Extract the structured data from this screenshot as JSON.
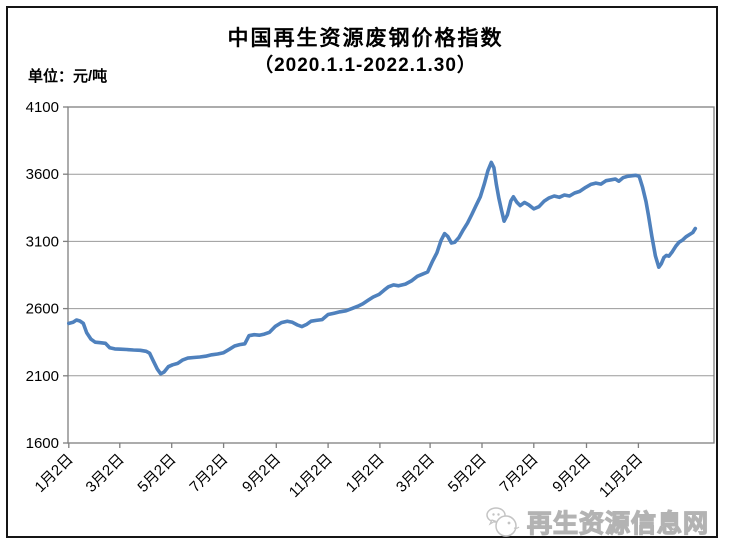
{
  "page": {
    "watermark_text": "再生资源信息网"
  },
  "chart_data": {
    "type": "line",
    "title": "中国再生资源废钢价格指数",
    "subtitle": "（2020.1.1-2022.1.30）",
    "unit_label": "单位：元/吨",
    "ylabel": "元/吨",
    "ylim": [
      1600,
      4100
    ],
    "y_step": 500,
    "yticks": [
      1600,
      2100,
      2600,
      3100,
      3600,
      4100
    ],
    "grid": true,
    "legend": "none",
    "line_color": "#4F81BD",
    "grid_color": "#9a9a9a",
    "axis_color": "#7f7f7f",
    "x_range": [
      "2020-01-01",
      "2022-01-30"
    ],
    "xticks": [
      {
        "label": "1月2日",
        "date": "2020-01-02"
      },
      {
        "label": "3月2日",
        "date": "2020-03-02"
      },
      {
        "label": "5月2日",
        "date": "2020-05-02"
      },
      {
        "label": "7月2日",
        "date": "2020-07-02"
      },
      {
        "label": "9月2日",
        "date": "2020-09-02"
      },
      {
        "label": "11月2日",
        "date": "2020-11-02"
      },
      {
        "label": "1月2日",
        "date": "2021-01-02"
      },
      {
        "label": "3月2日",
        "date": "2021-03-02"
      },
      {
        "label": "5月2日",
        "date": "2021-05-02"
      },
      {
        "label": "7月2日",
        "date": "2021-07-02"
      },
      {
        "label": "9月2日",
        "date": "2021-09-02"
      },
      {
        "label": "11月2日",
        "date": "2021-11-02"
      }
    ],
    "series": [
      {
        "points": [
          [
            "2020-01-02",
            2490
          ],
          [
            "2020-01-07",
            2498
          ],
          [
            "2020-01-11",
            2515
          ],
          [
            "2020-01-15",
            2508
          ],
          [
            "2020-01-19",
            2490
          ],
          [
            "2020-01-23",
            2420
          ],
          [
            "2020-01-28",
            2372
          ],
          [
            "2020-02-02",
            2350
          ],
          [
            "2020-02-08",
            2346
          ],
          [
            "2020-02-14",
            2342
          ],
          [
            "2020-02-19",
            2308
          ],
          [
            "2020-02-25",
            2300
          ],
          [
            "2020-03-03",
            2298
          ],
          [
            "2020-03-10",
            2296
          ],
          [
            "2020-03-18",
            2292
          ],
          [
            "2020-03-26",
            2290
          ],
          [
            "2020-04-02",
            2282
          ],
          [
            "2020-04-06",
            2268
          ],
          [
            "2020-04-10",
            2215
          ],
          [
            "2020-04-15",
            2150
          ],
          [
            "2020-04-19",
            2115
          ],
          [
            "2020-04-23",
            2128
          ],
          [
            "2020-04-28",
            2168
          ],
          [
            "2020-05-03",
            2182
          ],
          [
            "2020-05-09",
            2192
          ],
          [
            "2020-05-15",
            2218
          ],
          [
            "2020-05-21",
            2232
          ],
          [
            "2020-05-28",
            2236
          ],
          [
            "2020-06-04",
            2240
          ],
          [
            "2020-06-11",
            2246
          ],
          [
            "2020-06-18",
            2256
          ],
          [
            "2020-06-25",
            2262
          ],
          [
            "2020-07-02",
            2272
          ],
          [
            "2020-07-09",
            2298
          ],
          [
            "2020-07-15",
            2322
          ],
          [
            "2020-07-21",
            2332
          ],
          [
            "2020-07-27",
            2338
          ],
          [
            "2020-08-01",
            2398
          ],
          [
            "2020-08-07",
            2406
          ],
          [
            "2020-08-13",
            2402
          ],
          [
            "2020-08-19",
            2410
          ],
          [
            "2020-08-25",
            2424
          ],
          [
            "2020-09-01",
            2468
          ],
          [
            "2020-09-08",
            2496
          ],
          [
            "2020-09-15",
            2506
          ],
          [
            "2020-09-21",
            2498
          ],
          [
            "2020-09-27",
            2478
          ],
          [
            "2020-10-02",
            2466
          ],
          [
            "2020-10-08",
            2484
          ],
          [
            "2020-10-13",
            2506
          ],
          [
            "2020-10-19",
            2512
          ],
          [
            "2020-10-26",
            2518
          ],
          [
            "2020-11-02",
            2556
          ],
          [
            "2020-11-09",
            2566
          ],
          [
            "2020-11-16",
            2576
          ],
          [
            "2020-11-23",
            2584
          ],
          [
            "2020-11-30",
            2600
          ],
          [
            "2020-12-07",
            2618
          ],
          [
            "2020-12-13",
            2636
          ],
          [
            "2020-12-19",
            2662
          ],
          [
            "2020-12-25",
            2686
          ],
          [
            "2021-01-01",
            2706
          ],
          [
            "2021-01-07",
            2738
          ],
          [
            "2021-01-12",
            2762
          ],
          [
            "2021-01-18",
            2776
          ],
          [
            "2021-01-24",
            2770
          ],
          [
            "2021-02-01",
            2782
          ],
          [
            "2021-02-08",
            2806
          ],
          [
            "2021-02-15",
            2840
          ],
          [
            "2021-02-21",
            2856
          ],
          [
            "2021-02-27",
            2872
          ],
          [
            "2021-03-05",
            2955
          ],
          [
            "2021-03-10",
            3015
          ],
          [
            "2021-03-15",
            3108
          ],
          [
            "2021-03-19",
            3158
          ],
          [
            "2021-03-23",
            3136
          ],
          [
            "2021-03-27",
            3088
          ],
          [
            "2021-03-31",
            3094
          ],
          [
            "2021-04-05",
            3130
          ],
          [
            "2021-04-10",
            3186
          ],
          [
            "2021-04-15",
            3236
          ],
          [
            "2021-04-20",
            3300
          ],
          [
            "2021-04-25",
            3366
          ],
          [
            "2021-04-30",
            3432
          ],
          [
            "2021-05-05",
            3532
          ],
          [
            "2021-05-09",
            3626
          ],
          [
            "2021-05-13",
            3688
          ],
          [
            "2021-05-16",
            3648
          ],
          [
            "2021-05-19",
            3522
          ],
          [
            "2021-05-22",
            3420
          ],
          [
            "2021-05-25",
            3332
          ],
          [
            "2021-05-28",
            3250
          ],
          [
            "2021-06-01",
            3298
          ],
          [
            "2021-06-05",
            3400
          ],
          [
            "2021-06-08",
            3432
          ],
          [
            "2021-06-12",
            3392
          ],
          [
            "2021-06-16",
            3366
          ],
          [
            "2021-06-21",
            3390
          ],
          [
            "2021-06-26",
            3372
          ],
          [
            "2021-07-02",
            3342
          ],
          [
            "2021-07-08",
            3358
          ],
          [
            "2021-07-14",
            3398
          ],
          [
            "2021-07-20",
            3424
          ],
          [
            "2021-07-26",
            3438
          ],
          [
            "2021-08-01",
            3428
          ],
          [
            "2021-08-07",
            3445
          ],
          [
            "2021-08-13",
            3438
          ],
          [
            "2021-08-19",
            3460
          ],
          [
            "2021-08-25",
            3472
          ],
          [
            "2021-09-01",
            3502
          ],
          [
            "2021-09-07",
            3524
          ],
          [
            "2021-09-13",
            3534
          ],
          [
            "2021-09-19",
            3526
          ],
          [
            "2021-09-25",
            3552
          ],
          [
            "2021-10-01",
            3558
          ],
          [
            "2021-10-06",
            3564
          ],
          [
            "2021-10-10",
            3548
          ],
          [
            "2021-10-15",
            3574
          ],
          [
            "2021-10-20",
            3584
          ],
          [
            "2021-10-25",
            3588
          ],
          [
            "2021-10-30",
            3592
          ],
          [
            "2021-11-03",
            3584
          ],
          [
            "2021-11-07",
            3502
          ],
          [
            "2021-11-11",
            3396
          ],
          [
            "2021-11-14",
            3292
          ],
          [
            "2021-11-18",
            3136
          ],
          [
            "2021-11-22",
            2992
          ],
          [
            "2021-11-26",
            2908
          ],
          [
            "2021-11-29",
            2934
          ],
          [
            "2021-12-02",
            2980
          ],
          [
            "2021-12-05",
            2996
          ],
          [
            "2021-12-08",
            2990
          ],
          [
            "2021-12-12",
            3024
          ],
          [
            "2021-12-16",
            3064
          ],
          [
            "2021-12-20",
            3094
          ],
          [
            "2021-12-24",
            3110
          ],
          [
            "2021-12-28",
            3134
          ],
          [
            "2022-01-02",
            3154
          ],
          [
            "2022-01-05",
            3166
          ],
          [
            "2022-01-08",
            3196
          ]
        ]
      }
    ]
  }
}
